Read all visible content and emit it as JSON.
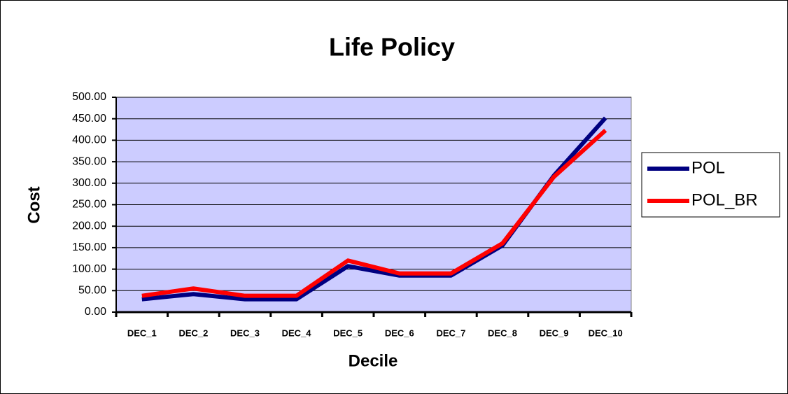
{
  "chart_data": {
    "type": "line",
    "title": "Life Policy",
    "x_label": "Decile",
    "y_label": "Cost",
    "categories": [
      "DEC_1",
      "DEC_2",
      "DEC_3",
      "DEC_4",
      "DEC_5",
      "DEC_6",
      "DEC_7",
      "DEC_8",
      "DEC_9",
      "DEC_10"
    ],
    "series": [
      {
        "name": "POL",
        "color": "#000080",
        "values": [
          30,
          42,
          30,
          30,
          107,
          85,
          85,
          155,
          318,
          452
        ]
      },
      {
        "name": "POL_BR",
        "color": "#ff0000",
        "values": [
          38,
          55,
          38,
          38,
          120,
          90,
          90,
          160,
          315,
          423
        ]
      }
    ],
    "ylim": [
      0,
      500
    ],
    "yticks": [
      {
        "value": 0,
        "label": "0.00"
      },
      {
        "value": 50,
        "label": "50.00"
      },
      {
        "value": 100,
        "label": "100.00"
      },
      {
        "value": 150,
        "label": "150.00"
      },
      {
        "value": 200,
        "label": "200.00"
      },
      {
        "value": 250,
        "label": "250.00"
      },
      {
        "value": 300,
        "label": "300.00"
      },
      {
        "value": 350,
        "label": "350.00"
      },
      {
        "value": 400,
        "label": "400.00"
      },
      {
        "value": 450,
        "label": "450.00"
      },
      {
        "value": 500,
        "label": "500.00"
      }
    ],
    "grid": true,
    "plot_background": "#ccccff",
    "legend": "right"
  }
}
